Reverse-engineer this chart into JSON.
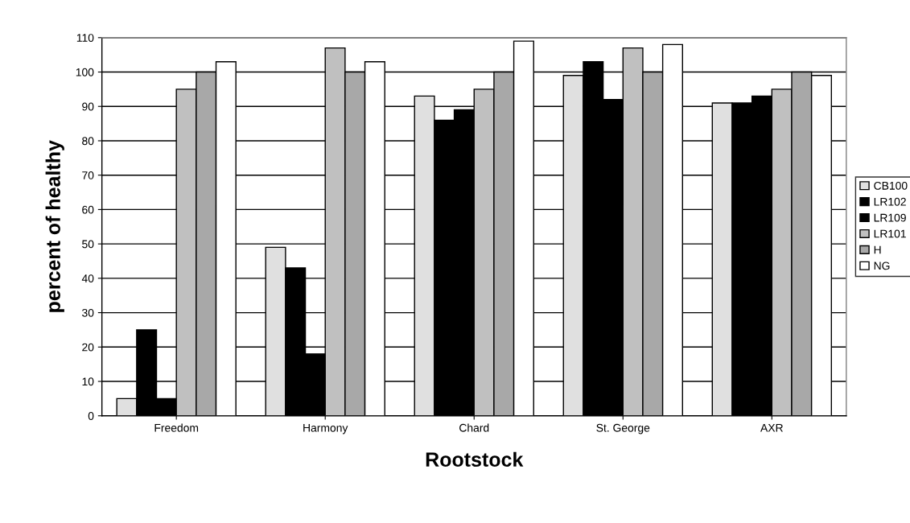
{
  "chart_data": {
    "type": "bar",
    "xlabel": "Rootstock",
    "ylabel": "percent of healthy",
    "categories": [
      "Freedom",
      "Harmony",
      "Chard",
      "St. George",
      "AXR"
    ],
    "series": [
      {
        "name": "CB100",
        "color": "#e0e0e0",
        "values": [
          5,
          49,
          93,
          99,
          91
        ]
      },
      {
        "name": "LR102",
        "color": "#000000",
        "values": [
          25,
          43,
          86,
          103,
          91
        ]
      },
      {
        "name": "LR109",
        "color": "#000000",
        "values": [
          5,
          18,
          89,
          92,
          93
        ]
      },
      {
        "name": "LR101",
        "color": "#c0c0c0",
        "values": [
          95,
          107,
          95,
          107,
          95
        ]
      },
      {
        "name": "H",
        "color": "#a8a8a8",
        "values": [
          100,
          100,
          100,
          100,
          100
        ]
      },
      {
        "name": "NG",
        "color": "#ffffff",
        "values": [
          103,
          103,
          109,
          108,
          99
        ]
      }
    ],
    "ylim": [
      0,
      110
    ],
    "yticks": [
      0,
      10,
      20,
      30,
      40,
      50,
      60,
      70,
      80,
      90,
      100,
      110
    ],
    "grid": "y",
    "legend": "right"
  }
}
